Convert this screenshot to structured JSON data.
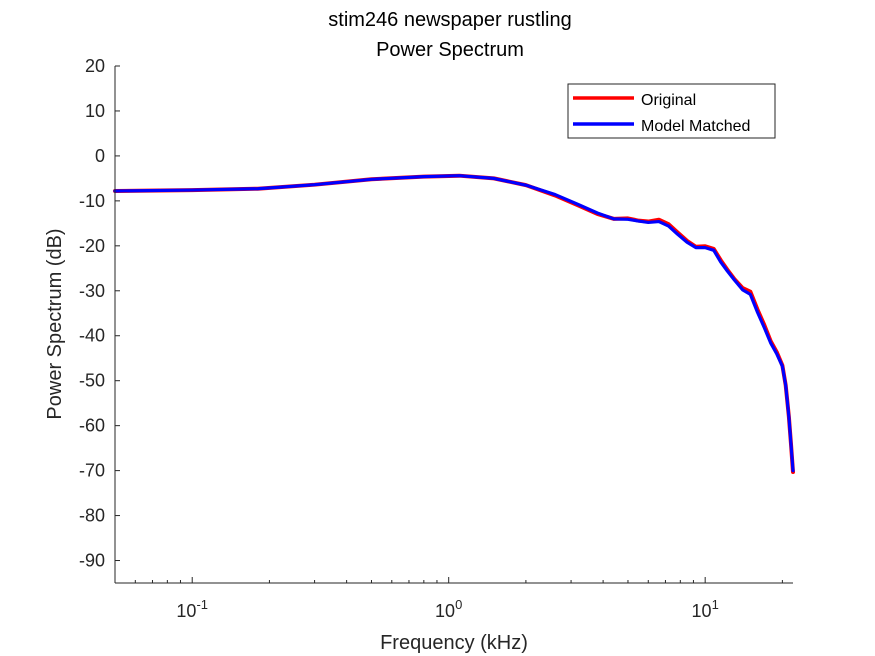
{
  "chart_data": {
    "type": "line",
    "title": "stim246 newspaper rustling",
    "subtitle": "Power Spectrum",
    "xlabel": "Frequency (kHz)",
    "ylabel": "Power Spectrum (dB)",
    "x_scale": "log",
    "xlim": [
      0.05,
      22
    ],
    "ylim": [
      -95,
      20
    ],
    "x_ticks": [
      {
        "value": 0.1,
        "base": "10",
        "exp": "-1"
      },
      {
        "value": 1,
        "base": "10",
        "exp": "0"
      },
      {
        "value": 10,
        "base": "10",
        "exp": "1"
      }
    ],
    "y_ticks": [
      20,
      10,
      0,
      -10,
      -20,
      -30,
      -40,
      -50,
      -60,
      -70,
      -80,
      -90
    ],
    "grid": false,
    "legend_position": "top-right",
    "series": [
      {
        "name": "Original",
        "color": "#ff0000",
        "x": [
          0.05,
          0.1,
          0.18,
          0.3,
          0.5,
          0.8,
          1.1,
          1.5,
          2.0,
          2.6,
          3.2,
          3.8,
          4.4,
          5.0,
          5.5,
          6.0,
          6.6,
          7.2,
          7.8,
          8.5,
          9.2,
          10.0,
          10.8,
          11.5,
          12.2,
          13.0,
          14.0,
          15.0,
          16.0,
          17.0,
          18.0,
          19.0,
          20.0,
          20.6,
          21.2,
          21.6,
          22.0
        ],
        "y": [
          -7.8,
          -7.6,
          -7.3,
          -6.4,
          -5.2,
          -4.6,
          -4.4,
          -5.0,
          -6.5,
          -8.8,
          -11.0,
          -12.9,
          -14.0,
          -13.9,
          -14.4,
          -14.6,
          -14.2,
          -15.2,
          -17.0,
          -18.9,
          -20.2,
          -20.1,
          -20.7,
          -23.2,
          -25.3,
          -27.4,
          -29.4,
          -30.2,
          -34.2,
          -37.6,
          -41.2,
          -43.6,
          -46.6,
          -51.0,
          -58.0,
          -64.0,
          -70.3
        ]
      },
      {
        "name": "Model Matched",
        "color": "#0000ff",
        "x": [
          0.05,
          0.1,
          0.18,
          0.3,
          0.5,
          0.8,
          1.1,
          1.5,
          2.0,
          2.6,
          3.2,
          3.8,
          4.4,
          5.0,
          5.5,
          6.0,
          6.6,
          7.2,
          7.8,
          8.5,
          9.2,
          10.0,
          10.8,
          11.5,
          12.2,
          13.0,
          14.0,
          15.0,
          16.0,
          17.0,
          18.0,
          19.0,
          20.0,
          20.6,
          21.2,
          21.6,
          22.0
        ],
        "y": [
          -7.8,
          -7.6,
          -7.3,
          -6.4,
          -5.2,
          -4.6,
          -4.4,
          -5.0,
          -6.5,
          -8.6,
          -10.8,
          -12.7,
          -14.0,
          -14.1,
          -14.5,
          -14.8,
          -14.6,
          -15.6,
          -17.4,
          -19.2,
          -20.4,
          -20.4,
          -21.0,
          -23.6,
          -25.6,
          -27.6,
          -29.8,
          -30.8,
          -34.8,
          -38.2,
          -41.6,
          -44.0,
          -46.8,
          -51.0,
          -58.0,
          -64.0,
          -70.0
        ]
      }
    ]
  }
}
